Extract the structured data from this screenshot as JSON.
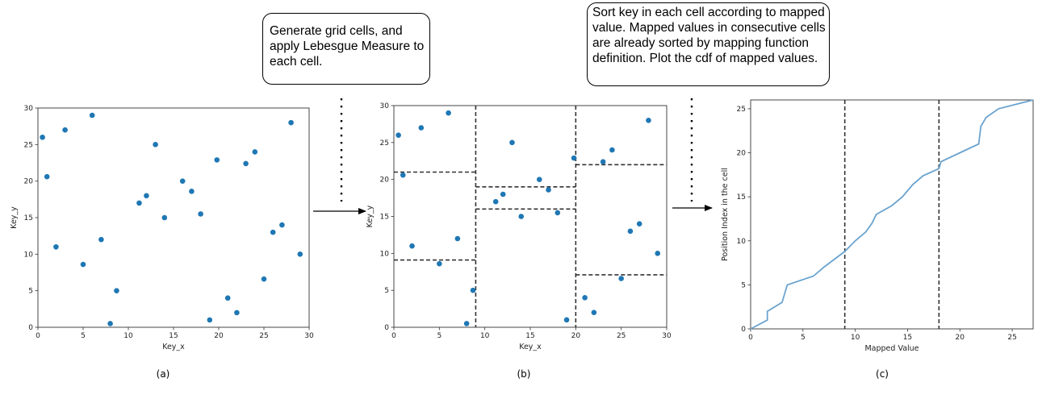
{
  "annotations": {
    "step1": "Generate grid cells, and apply Lebesgue Measure to each cell.",
    "step2": "Sort key in each cell according to mapped value. Mapped values in consecutive cells are already sorted by mapping function definition. Plot the cdf of mapped values."
  },
  "chart_data": [
    {
      "type": "scatter",
      "caption": "(a)",
      "xlabel": "Key_x",
      "ylabel": "Key_y",
      "xlim": [
        0,
        30
      ],
      "ylim": [
        0,
        30
      ],
      "xticks": [
        0,
        5,
        10,
        15,
        20,
        25,
        30
      ],
      "yticks": [
        0,
        5,
        10,
        15,
        20,
        25,
        30
      ],
      "marker_color": "#1f77b4",
      "points": [
        [
          0.5,
          26
        ],
        [
          1,
          20.6
        ],
        [
          2,
          11
        ],
        [
          3,
          27
        ],
        [
          5,
          8.6
        ],
        [
          6,
          29
        ],
        [
          7,
          12
        ],
        [
          8,
          0.5
        ],
        [
          8.7,
          5
        ],
        [
          11.2,
          17
        ],
        [
          12,
          18
        ],
        [
          13,
          25
        ],
        [
          14,
          15
        ],
        [
          16,
          20
        ],
        [
          17,
          18.6
        ],
        [
          18,
          15.5
        ],
        [
          19,
          1
        ],
        [
          19.8,
          22.9
        ],
        [
          21,
          4
        ],
        [
          22,
          2
        ],
        [
          23,
          22.4
        ],
        [
          24,
          24
        ],
        [
          25,
          6.6
        ],
        [
          26,
          13
        ],
        [
          27,
          14
        ],
        [
          28,
          28
        ],
        [
          29,
          10
        ]
      ]
    },
    {
      "type": "scatter",
      "caption": "(b)",
      "xlabel": "Key_x",
      "ylabel": "Key_y",
      "xlim": [
        0,
        30
      ],
      "ylim": [
        0,
        30
      ],
      "xticks": [
        0,
        5,
        10,
        15,
        20,
        25,
        30
      ],
      "yticks": [
        0,
        5,
        10,
        15,
        20,
        25,
        30
      ],
      "marker_color": "#1f77b4",
      "vertical_dividers": [
        9,
        20
      ],
      "horizontal_dividers": [
        {
          "y": 21,
          "x_range": [
            0,
            9
          ]
        },
        {
          "y": 9.1,
          "x_range": [
            0,
            9
          ]
        },
        {
          "y": 19,
          "x_range": [
            9,
            20
          ]
        },
        {
          "y": 16,
          "x_range": [
            9,
            20
          ]
        },
        {
          "y": 22,
          "x_range": [
            20,
            30
          ]
        },
        {
          "y": 7.1,
          "x_range": [
            20,
            30
          ]
        }
      ],
      "points": [
        [
          0.5,
          26
        ],
        [
          1,
          20.6
        ],
        [
          2,
          11
        ],
        [
          3,
          27
        ],
        [
          5,
          8.6
        ],
        [
          6,
          29
        ],
        [
          7,
          12
        ],
        [
          8,
          0.5
        ],
        [
          8.7,
          5
        ],
        [
          11.2,
          17
        ],
        [
          12,
          18
        ],
        [
          13,
          25
        ],
        [
          14,
          15
        ],
        [
          16,
          20
        ],
        [
          17,
          18.6
        ],
        [
          18,
          15.5
        ],
        [
          19,
          1
        ],
        [
          19.8,
          22.9
        ],
        [
          21,
          4
        ],
        [
          22,
          2
        ],
        [
          23,
          22.4
        ],
        [
          24,
          24
        ],
        [
          25,
          6.6
        ],
        [
          26,
          13
        ],
        [
          27,
          14
        ],
        [
          28,
          28
        ],
        [
          29,
          10
        ]
      ]
    },
    {
      "type": "line",
      "caption": "(c)",
      "xlabel": "Mapped Value",
      "ylabel": "Position Index in the cell",
      "xlim": [
        0,
        27
      ],
      "ylim": [
        0,
        26
      ],
      "xticks": [
        0,
        5,
        10,
        15,
        20,
        25
      ],
      "yticks": [
        0,
        5,
        10,
        15,
        20,
        25
      ],
      "line_color": "#6aa3cf",
      "vertical_dividers": [
        9,
        18
      ],
      "points": [
        [
          0,
          0
        ],
        [
          1.6,
          1
        ],
        [
          1.6,
          2
        ],
        [
          3,
          3
        ],
        [
          3.5,
          5
        ],
        [
          6,
          6
        ],
        [
          7,
          7
        ],
        [
          9,
          8.8
        ],
        [
          10,
          10
        ],
        [
          11,
          11
        ],
        [
          11.6,
          12
        ],
        [
          12,
          13
        ],
        [
          13.5,
          14
        ],
        [
          14.5,
          15
        ],
        [
          15.5,
          16.4
        ],
        [
          16.5,
          17.4
        ],
        [
          18,
          18.2
        ],
        [
          18.2,
          19
        ],
        [
          20,
          20
        ],
        [
          21.8,
          21
        ],
        [
          22,
          23
        ],
        [
          22.5,
          24
        ],
        [
          23.7,
          25
        ],
        [
          27,
          26
        ]
      ]
    }
  ],
  "captions": [
    "(a)",
    "(b)",
    "(c)"
  ]
}
